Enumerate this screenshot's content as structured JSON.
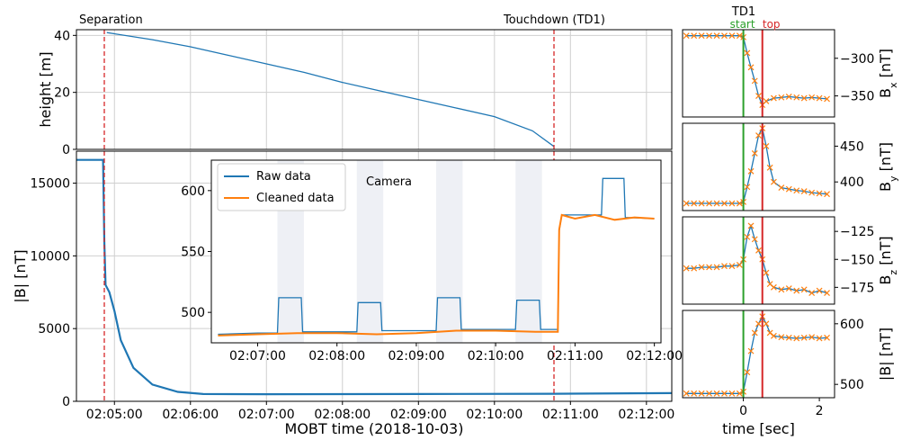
{
  "chart_data": [
    {
      "id": "height",
      "type": "line",
      "ylabel": "height [m]",
      "xlim": [
        "02:04:30",
        "02:12:20"
      ],
      "ylim": [
        0,
        42
      ],
      "yticks": [
        0,
        20,
        40
      ],
      "grid": true,
      "annotations": [
        "Separation",
        "Touchdown (TD1)"
      ],
      "events": [
        {
          "name": "Separation",
          "time": "02:04:52"
        },
        {
          "name": "Touchdown (TD1)",
          "time": "02:10:47"
        }
      ],
      "series": [
        {
          "color": "#1f77b4",
          "x": [
            "02:04:54",
            "02:05:30",
            "02:06:00",
            "02:06:30",
            "02:07:00",
            "02:07:30",
            "02:08:00",
            "02:08:30",
            "02:09:00",
            "02:09:30",
            "02:10:00",
            "02:10:30",
            "02:10:47"
          ],
          "y": [
            41,
            38.5,
            36,
            33,
            30,
            27,
            23.5,
            20.5,
            17.5,
            14.5,
            11.5,
            6.5,
            1
          ]
        }
      ]
    },
    {
      "id": "bmag",
      "type": "line",
      "xlabel": "MOBT time (2018-10-03)",
      "ylabel": "|B| [nT]",
      "xlim": [
        "02:04:30",
        "02:12:20"
      ],
      "ylim": [
        0,
        17200
      ],
      "yticks": [
        0,
        5000,
        10000,
        15000
      ],
      "xticks": [
        "02:05:00",
        "02:06:00",
        "02:07:00",
        "02:08:00",
        "02:09:00",
        "02:10:00",
        "02:11:00",
        "02:12:00"
      ],
      "series": [
        {
          "color": "#1f77b4",
          "x": [
            "02:04:30",
            "02:04:51",
            "02:04:52",
            "02:04:53",
            "02:04:56",
            "02:05:00",
            "02:05:05",
            "02:05:15",
            "02:05:30",
            "02:05:50",
            "02:06:10",
            "02:07:00",
            "02:09:00",
            "02:10:47",
            "02:12:20"
          ],
          "y": [
            16600,
            16600,
            11000,
            8000,
            7500,
            6200,
            4200,
            2300,
            1150,
            650,
            500,
            490,
            500,
            520,
            560
          ]
        }
      ]
    },
    {
      "id": "inset",
      "type": "line",
      "xlim": [
        "02:06:25",
        "02:12:05"
      ],
      "ylim": [
        475,
        625
      ],
      "yticks": [
        500,
        550,
        600
      ],
      "xticks": [
        "02:07:00",
        "02:08:00",
        "02:09:00",
        "02:10:00",
        "02:11:00",
        "02:12:00"
      ],
      "legend": "top-left",
      "annotation": "Camera",
      "camera_intervals": [
        [
          "02:07:15",
          "02:07:35"
        ],
        [
          "02:08:15",
          "02:08:35"
        ],
        [
          "02:09:15",
          "02:09:35"
        ],
        [
          "02:10:15",
          "02:10:35"
        ]
      ],
      "series": [
        {
          "name": "Raw data",
          "color": "#1f77b4",
          "x": [
            "02:06:30",
            "02:07:00",
            "02:07:15",
            "02:07:16",
            "02:07:33",
            "02:07:34",
            "02:08:00",
            "02:08:15",
            "02:08:16",
            "02:08:33",
            "02:08:34",
            "02:09:00",
            "02:09:15",
            "02:09:16",
            "02:09:33",
            "02:09:34",
            "02:10:00",
            "02:10:15",
            "02:10:16",
            "02:10:33",
            "02:10:34",
            "02:10:47",
            "02:10:48",
            "02:10:50",
            "02:11:00",
            "02:11:20",
            "02:11:21",
            "02:11:37",
            "02:11:38",
            "02:12:00"
          ],
          "y": [
            482,
            483,
            483,
            512,
            512,
            484,
            484,
            484,
            508,
            508,
            485,
            485,
            485,
            512,
            512,
            486,
            486,
            486,
            510,
            510,
            486,
            486,
            567,
            580,
            580,
            580,
            610,
            610,
            578,
            577
          ]
        },
        {
          "name": "Cleaned data",
          "color": "#ff7f0e",
          "x": [
            "02:06:30",
            "02:07:00",
            "02:07:30",
            "02:08:00",
            "02:08:30",
            "02:09:00",
            "02:09:30",
            "02:10:00",
            "02:10:30",
            "02:10:47",
            "02:10:48",
            "02:10:50",
            "02:11:00",
            "02:11:15",
            "02:11:30",
            "02:11:45",
            "02:12:00"
          ],
          "y": [
            481,
            482,
            483,
            483,
            482,
            483,
            485,
            485,
            484,
            484,
            568,
            580,
            577,
            580,
            576,
            578,
            577
          ]
        }
      ]
    },
    {
      "id": "bx",
      "type": "line",
      "title": "TD1",
      "ylabel": "B_x [nT]",
      "ylim": [
        -378,
        -262
      ],
      "yticks": [
        -300,
        -350
      ],
      "events": [
        {
          "name": "start",
          "time": 0
        },
        {
          "name": "top",
          "time": 0.5
        }
      ],
      "series": [
        {
          "color": "#1f77b4",
          "x": [
            -1.5,
            -1.3,
            -1.1,
            -0.9,
            -0.7,
            -0.5,
            -0.3,
            -0.1,
            0,
            0.1,
            0.2,
            0.3,
            0.4,
            0.5,
            0.6,
            0.8,
            1.0,
            1.2,
            1.4,
            1.6,
            1.8,
            2.0,
            2.2
          ],
          "y": [
            -270,
            -270,
            -270,
            -270,
            -270,
            -270,
            -270,
            -270,
            -272,
            -293,
            -312,
            -330,
            -350,
            -362,
            -357,
            -353,
            -352,
            -351,
            -352,
            -353,
            -352,
            -353,
            -354
          ]
        }
      ]
    },
    {
      "id": "by",
      "type": "line",
      "ylabel": "B_y [nT]",
      "ylim": [
        360,
        482
      ],
      "yticks": [
        400,
        450
      ],
      "events": [
        {
          "name": "start",
          "time": 0
        },
        {
          "name": "top",
          "time": 0.5
        }
      ],
      "series": [
        {
          "color": "#1f77b4",
          "x": [
            -1.5,
            -1.3,
            -1.1,
            -0.9,
            -0.7,
            -0.5,
            -0.3,
            -0.1,
            0,
            0.1,
            0.2,
            0.3,
            0.4,
            0.5,
            0.6,
            0.7,
            0.8,
            1.0,
            1.2,
            1.4,
            1.6,
            1.8,
            2.0,
            2.2
          ],
          "y": [
            370,
            370,
            370,
            370,
            370,
            370,
            370,
            370,
            372,
            393,
            415,
            440,
            465,
            475,
            450,
            420,
            400,
            392,
            390,
            388,
            387,
            385,
            384,
            383
          ]
        }
      ]
    },
    {
      "id": "bz",
      "type": "line",
      "ylabel": "B_z [nT]",
      "ylim": [
        -190,
        -112
      ],
      "yticks": [
        -125,
        -150,
        -175
      ],
      "events": [
        {
          "name": "start",
          "time": 0
        },
        {
          "name": "top",
          "time": 0.5
        }
      ],
      "series": [
        {
          "color": "#1f77b4",
          "x": [
            -1.5,
            -1.3,
            -1.1,
            -0.9,
            -0.7,
            -0.5,
            -0.3,
            -0.1,
            0,
            0.1,
            0.2,
            0.3,
            0.4,
            0.5,
            0.6,
            0.7,
            0.8,
            1.0,
            1.2,
            1.4,
            1.6,
            1.8,
            2.0,
            2.2
          ],
          "y": [
            -158,
            -158,
            -157,
            -157,
            -157,
            -156,
            -156,
            -155,
            -150,
            -130,
            -120,
            -132,
            -142,
            -150,
            -162,
            -172,
            -175,
            -177,
            -176,
            -178,
            -177,
            -180,
            -178,
            -180
          ]
        }
      ]
    },
    {
      "id": "bmag_td1",
      "type": "line",
      "xlabel": "time [sec]",
      "ylabel": "|B| [nT]",
      "ylim": [
        478,
        622
      ],
      "yticks": [
        500,
        600
      ],
      "xticks": [
        0,
        2
      ],
      "xlim": [
        -1.6,
        2.4
      ],
      "events": [
        {
          "name": "start",
          "time": 0
        },
        {
          "name": "top",
          "time": 0.5
        }
      ],
      "series": [
        {
          "color": "#1f77b4",
          "x": [
            -1.5,
            -1.3,
            -1.1,
            -0.9,
            -0.7,
            -0.5,
            -0.3,
            -0.1,
            0,
            0.1,
            0.2,
            0.3,
            0.4,
            0.5,
            0.6,
            0.7,
            0.8,
            1.0,
            1.2,
            1.4,
            1.6,
            1.8,
            2.0,
            2.2
          ],
          "y": [
            485,
            485,
            485,
            485,
            485,
            485,
            485,
            485,
            488,
            520,
            555,
            585,
            600,
            612,
            600,
            585,
            580,
            578,
            577,
            576,
            577,
            578,
            576,
            577
          ]
        }
      ]
    }
  ]
}
